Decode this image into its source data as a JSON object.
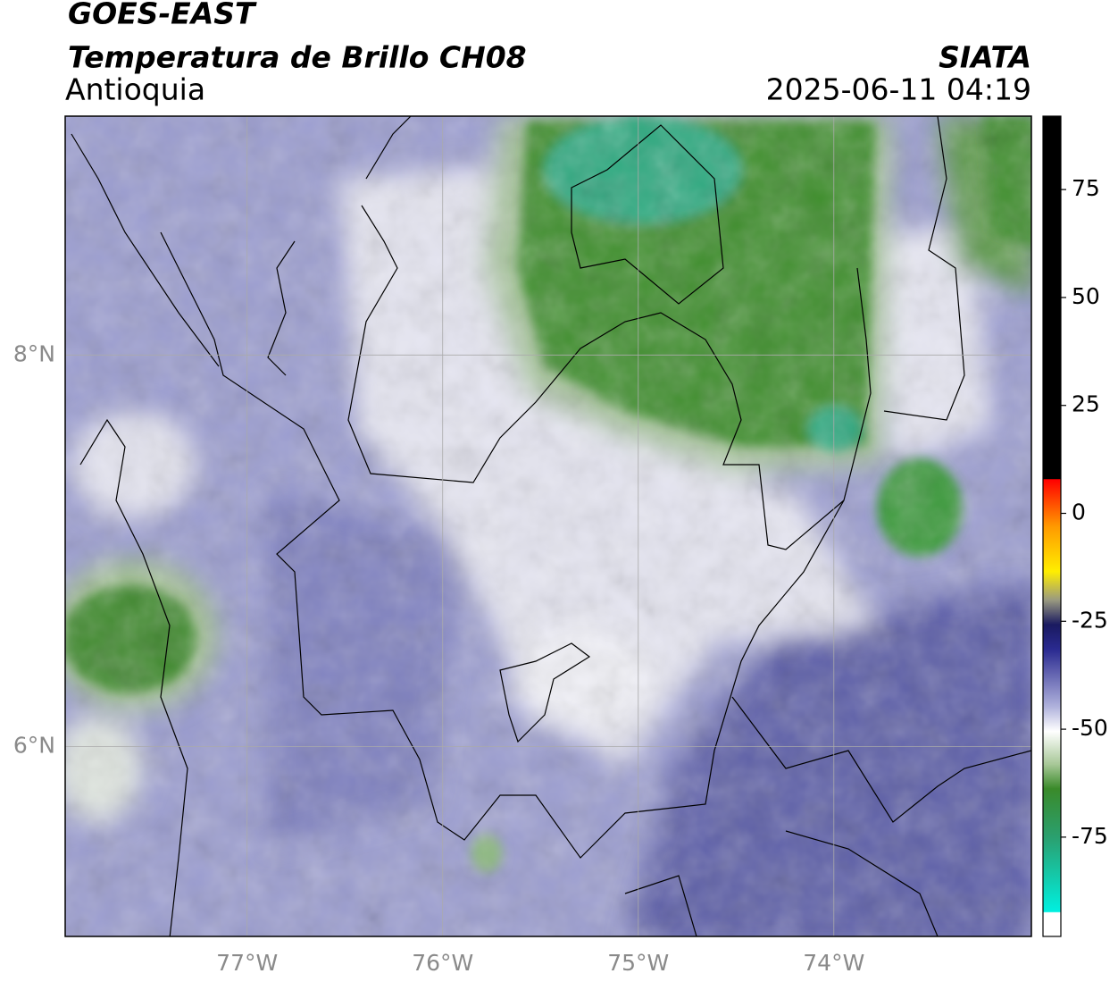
{
  "header": {
    "title": "GOES-EAST",
    "subtitle": "Temperatura de Brillo CH08",
    "region": "Antioquia",
    "source": "SIATA",
    "timestamp": "2025-06-11 04:19"
  },
  "map": {
    "xlim": [
      -77.93,
      -72.99
    ],
    "ylim": [
      5.03,
      9.22
    ],
    "xticks": [
      {
        "value": -77,
        "label": "77°W"
      },
      {
        "value": -76,
        "label": "76°W"
      },
      {
        "value": -75,
        "label": "75°W"
      },
      {
        "value": -74,
        "label": "74°W"
      }
    ],
    "yticks": [
      {
        "value": 6,
        "label": "6°N"
      },
      {
        "value": 8,
        "label": "8°N"
      }
    ],
    "grid": true
  },
  "colorbar": {
    "lim": [
      -98,
      92
    ],
    "ticks": [
      75,
      50,
      25,
      0,
      -25,
      -50,
      -75
    ]
  }
}
